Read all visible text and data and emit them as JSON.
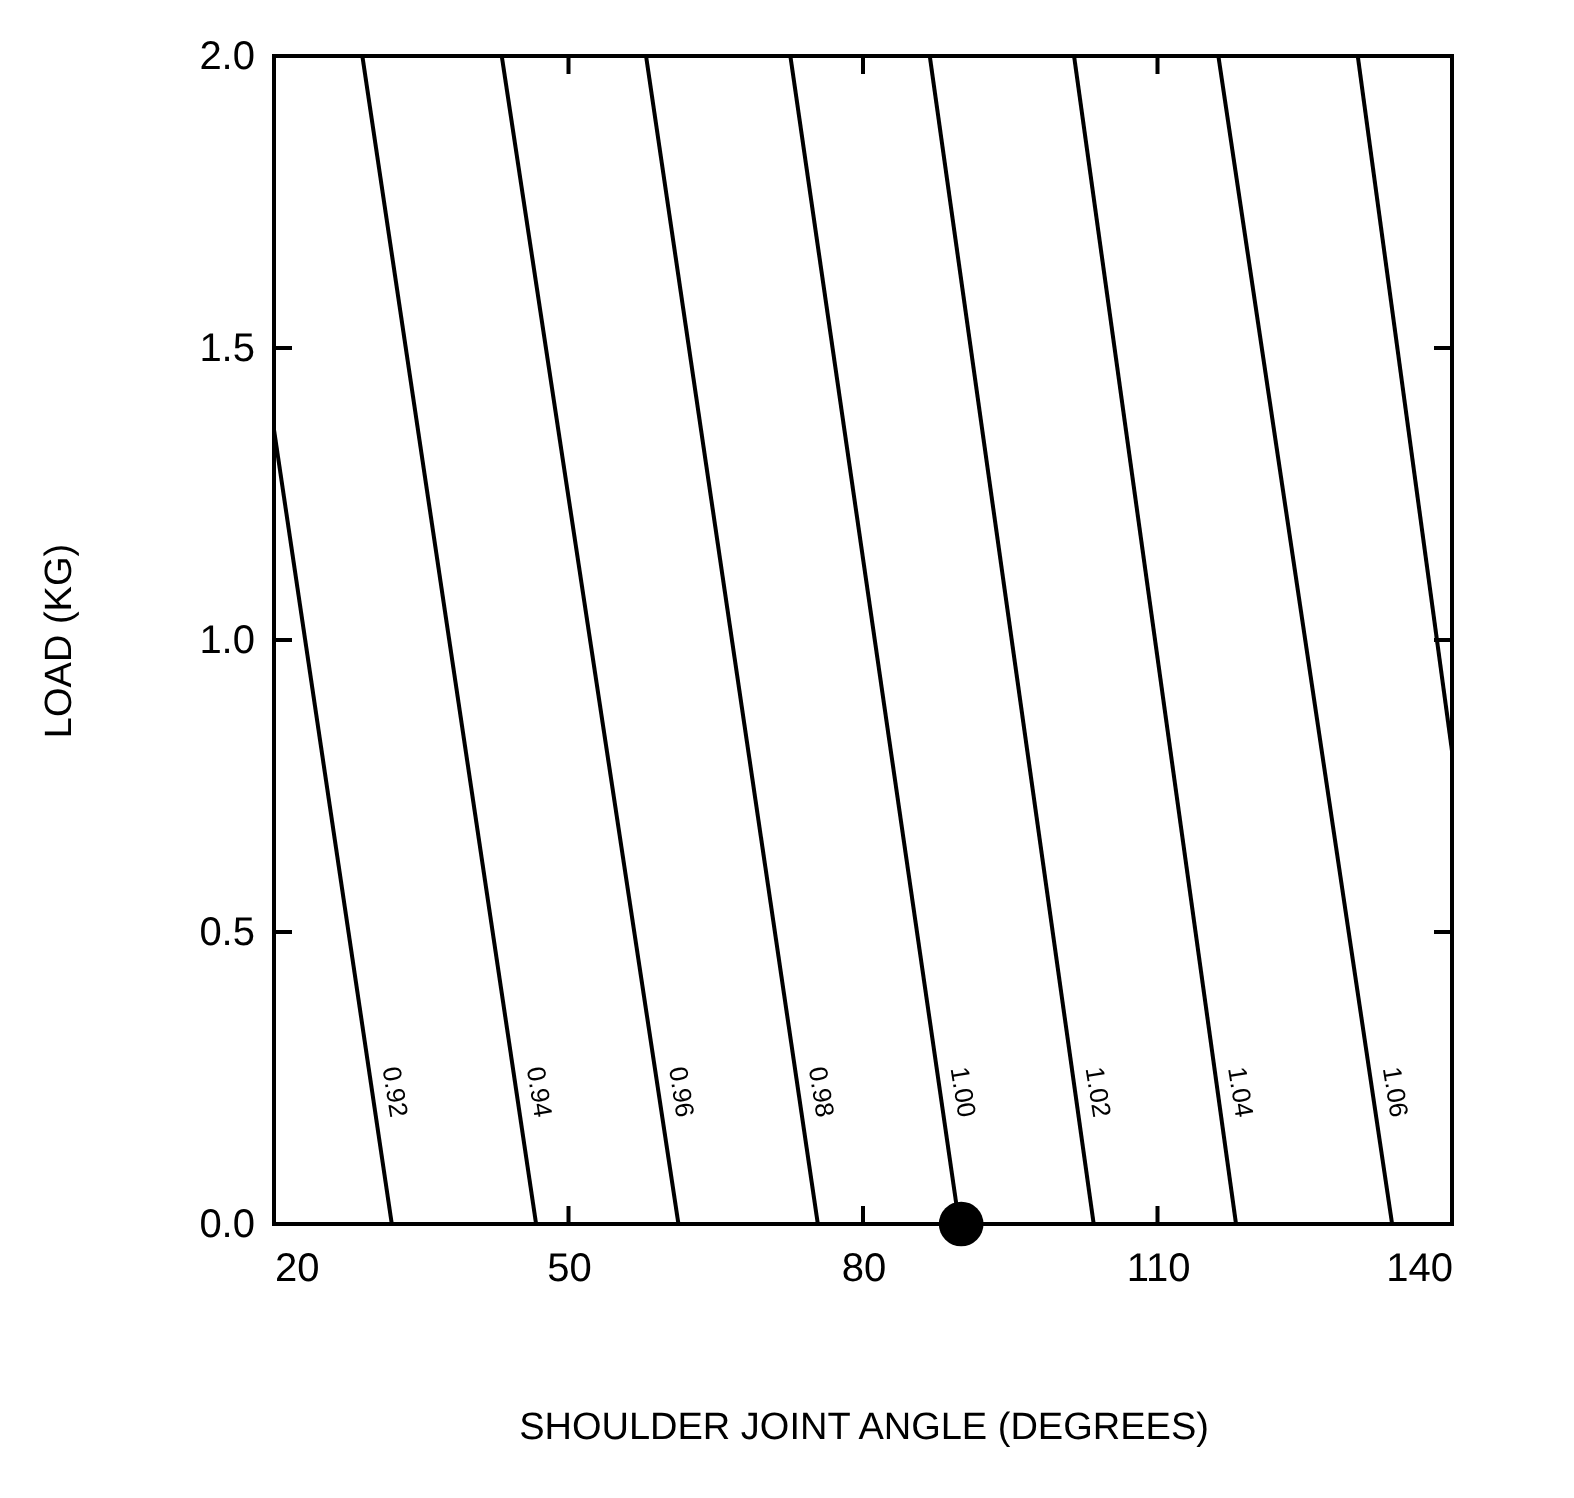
{
  "chart_data": {
    "type": "line",
    "xlabel": "SHOULDER JOINT ANGLE (DEGREES)",
    "ylabel": "LOAD (KG)",
    "xlim": [
      20,
      140
    ],
    "ylim": [
      0,
      2
    ],
    "xticks": [
      20,
      50,
      80,
      110,
      140
    ],
    "yticks": [
      {
        "value": 0,
        "label": "0.0"
      },
      0.5,
      {
        "value": 1,
        "label": "1.0"
      },
      1.5,
      {
        "value": 2,
        "label": "2.0"
      }
    ],
    "grid": false,
    "line_style": "solid",
    "series": [
      {
        "name": "0.92",
        "color": "#000000",
        "x": [
          20,
          32.0
        ],
        "values": [
          1.36,
          0
        ]
      },
      {
        "name": "0.94",
        "color": "#000000",
        "x": [
          29.0,
          46.7
        ],
        "values": [
          2,
          0
        ]
      },
      {
        "name": "0.96",
        "color": "#000000",
        "x": [
          43.2,
          61.2
        ],
        "values": [
          2,
          0
        ]
      },
      {
        "name": "0.98",
        "color": "#000000",
        "x": [
          57.9,
          75.4
        ],
        "values": [
          2,
          0
        ]
      },
      {
        "name": "1.00",
        "color": "#000000",
        "x": [
          72.6,
          89.8
        ],
        "values": [
          2,
          0
        ]
      },
      {
        "name": "1.02",
        "color": "#000000",
        "x": [
          86.8,
          103.5
        ],
        "values": [
          2,
          0
        ]
      },
      {
        "name": "1.04",
        "color": "#000000",
        "x": [
          101.5,
          118.0
        ],
        "values": [
          2,
          0
        ]
      },
      {
        "name": "1.06",
        "color": "#000000",
        "x": [
          116.2,
          133.9
        ],
        "values": [
          2,
          0
        ]
      },
      {
        "color": "#000000",
        "x": [
          130.4,
          140
        ],
        "values": [
          2,
          0.81
        ]
      },
      {
        "type": "scatter",
        "marker": "circle",
        "color": "#000000",
        "x": [
          90
        ],
        "values": [
          0
        ]
      }
    ]
  }
}
